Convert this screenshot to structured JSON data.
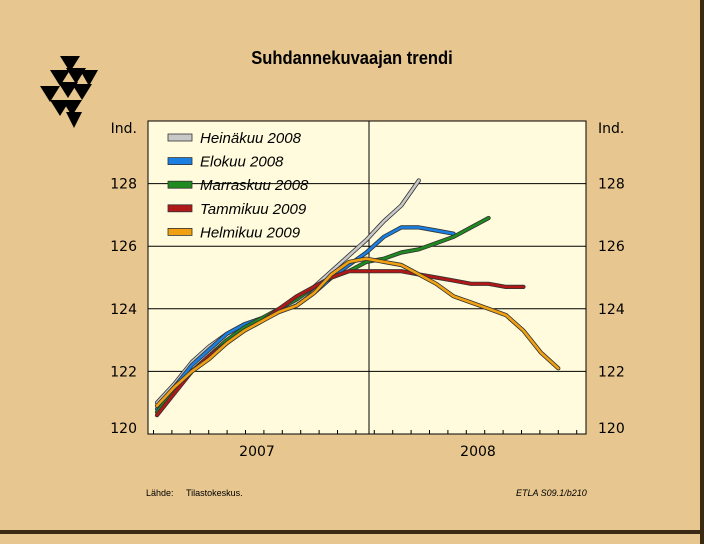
{
  "page": {
    "source_label": "Lähde:",
    "source_value": "Tilastokeskus.",
    "code": "ETLA S09.1/b210"
  },
  "chart_data": {
    "type": "line",
    "title": "Suhdannekuvaajan trendi",
    "ylabel_left": "Ind.",
    "ylabel_right": "Ind.",
    "ylim": [
      120,
      130
    ],
    "yticks": [
      120,
      122,
      124,
      126,
      128
    ],
    "x_tick_labels": [
      "2007",
      "2008"
    ],
    "x_months": [
      "2006-12",
      "2007-01",
      "2007-02",
      "2007-03",
      "2007-04",
      "2007-05",
      "2007-06",
      "2007-07",
      "2007-08",
      "2007-09",
      "2007-10",
      "2007-11",
      "2007-12",
      "2008-01",
      "2008-02",
      "2008-03",
      "2008-04",
      "2008-05",
      "2008-06",
      "2008-07",
      "2008-08",
      "2008-09",
      "2008-10",
      "2008-11",
      "2008-12",
      "2009-01",
      "2009-02",
      "2009-03"
    ],
    "grid": true,
    "legend_position": "top-left",
    "series": [
      {
        "name": "Heinäkuu 2008",
        "color": "#c8c8c8",
        "values": [
          121.0,
          121.6,
          122.3,
          122.8,
          123.2,
          123.5,
          123.7,
          123.9,
          124.2,
          124.7,
          125.2,
          125.7,
          126.2,
          126.8,
          127.3,
          128.1,
          null,
          null,
          null,
          null,
          null,
          null,
          null,
          null,
          null,
          null,
          null,
          null
        ]
      },
      {
        "name": "Elokuu 2008",
        "color": "#1a7fe0",
        "values": [
          120.8,
          121.5,
          122.2,
          122.7,
          123.2,
          123.5,
          123.7,
          123.9,
          124.1,
          124.5,
          125.0,
          125.4,
          125.8,
          126.3,
          126.6,
          126.6,
          126.5,
          126.4,
          null,
          null,
          null,
          null,
          null,
          null,
          null,
          null,
          null,
          null
        ]
      },
      {
        "name": "Marraskuu 2008",
        "color": "#1f8a1f",
        "values": [
          120.7,
          121.4,
          122.0,
          122.5,
          123.0,
          123.4,
          123.7,
          124.0,
          124.3,
          124.7,
          125.0,
          125.2,
          125.5,
          125.6,
          125.8,
          125.9,
          126.1,
          126.3,
          126.6,
          126.9,
          null,
          null,
          null,
          null,
          null,
          null,
          null,
          null
        ]
      },
      {
        "name": "Tammikuu 2009",
        "color": "#b01818",
        "values": [
          120.6,
          121.3,
          122.0,
          122.5,
          122.9,
          123.3,
          123.6,
          124.0,
          124.4,
          124.7,
          125.0,
          125.2,
          125.2,
          125.2,
          125.2,
          125.1,
          125.0,
          124.9,
          124.8,
          124.8,
          124.7,
          124.7,
          null,
          null,
          null,
          null,
          null,
          null
        ]
      },
      {
        "name": "Helmikuu 2009",
        "color": "#f0a010",
        "values": [
          120.9,
          121.5,
          122.0,
          122.4,
          122.9,
          123.3,
          123.6,
          123.9,
          124.1,
          124.5,
          125.1,
          125.5,
          125.6,
          125.5,
          125.4,
          125.1,
          124.8,
          124.4,
          124.2,
          124.0,
          123.8,
          123.3,
          122.6,
          122.1,
          null,
          null,
          null,
          null
        ]
      }
    ]
  }
}
